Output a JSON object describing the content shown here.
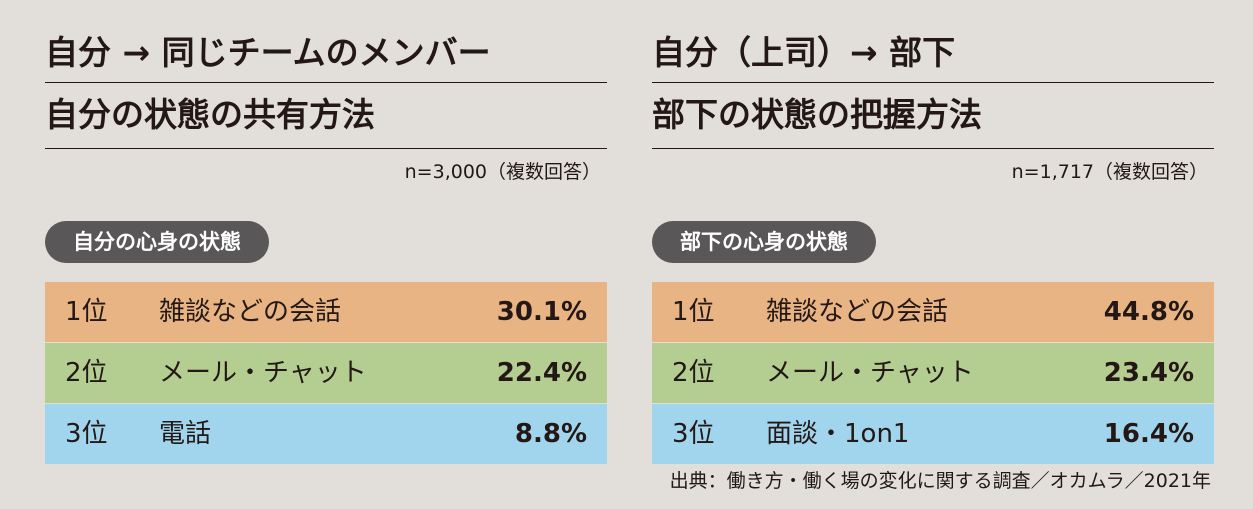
{
  "chart_data": [
    {
      "type": "table",
      "title": "自分 → 同じチームのメンバー",
      "subtitle": "自分の状態の共有方法",
      "note": "n=3,000（複数回答）",
      "category_label": "自分の心身の状態",
      "rows": [
        {
          "rank": "1位",
          "label": "雑談などの会話",
          "value": 30.1,
          "display": "30.1%",
          "color": "#e8b483"
        },
        {
          "rank": "2位",
          "label": "メール・チャット",
          "value": 22.4,
          "display": "22.4%",
          "color": "#b4ce91"
        },
        {
          "rank": "3位",
          "label": "電話",
          "value": 8.8,
          "display": "8.8%",
          "color": "#a1d5ee"
        }
      ]
    },
    {
      "type": "table",
      "title": "自分（上司）→ 部下",
      "subtitle": "部下の状態の把握方法",
      "note": "n=1,717（複数回答）",
      "category_label": "部下の心身の状態",
      "rows": [
        {
          "rank": "1位",
          "label": "雑談などの会話",
          "value": 44.8,
          "display": "44.8%",
          "color": "#e8b483"
        },
        {
          "rank": "2位",
          "label": "メール・チャット",
          "value": 23.4,
          "display": "23.4%",
          "color": "#b4ce91"
        },
        {
          "rank": "3位",
          "label": "面談・1on1",
          "value": 16.4,
          "display": "16.4%",
          "color": "#a1d5ee"
        }
      ]
    }
  ],
  "source": "出典：働き方・働く場の変化に関する調査／オカムラ／2021年"
}
